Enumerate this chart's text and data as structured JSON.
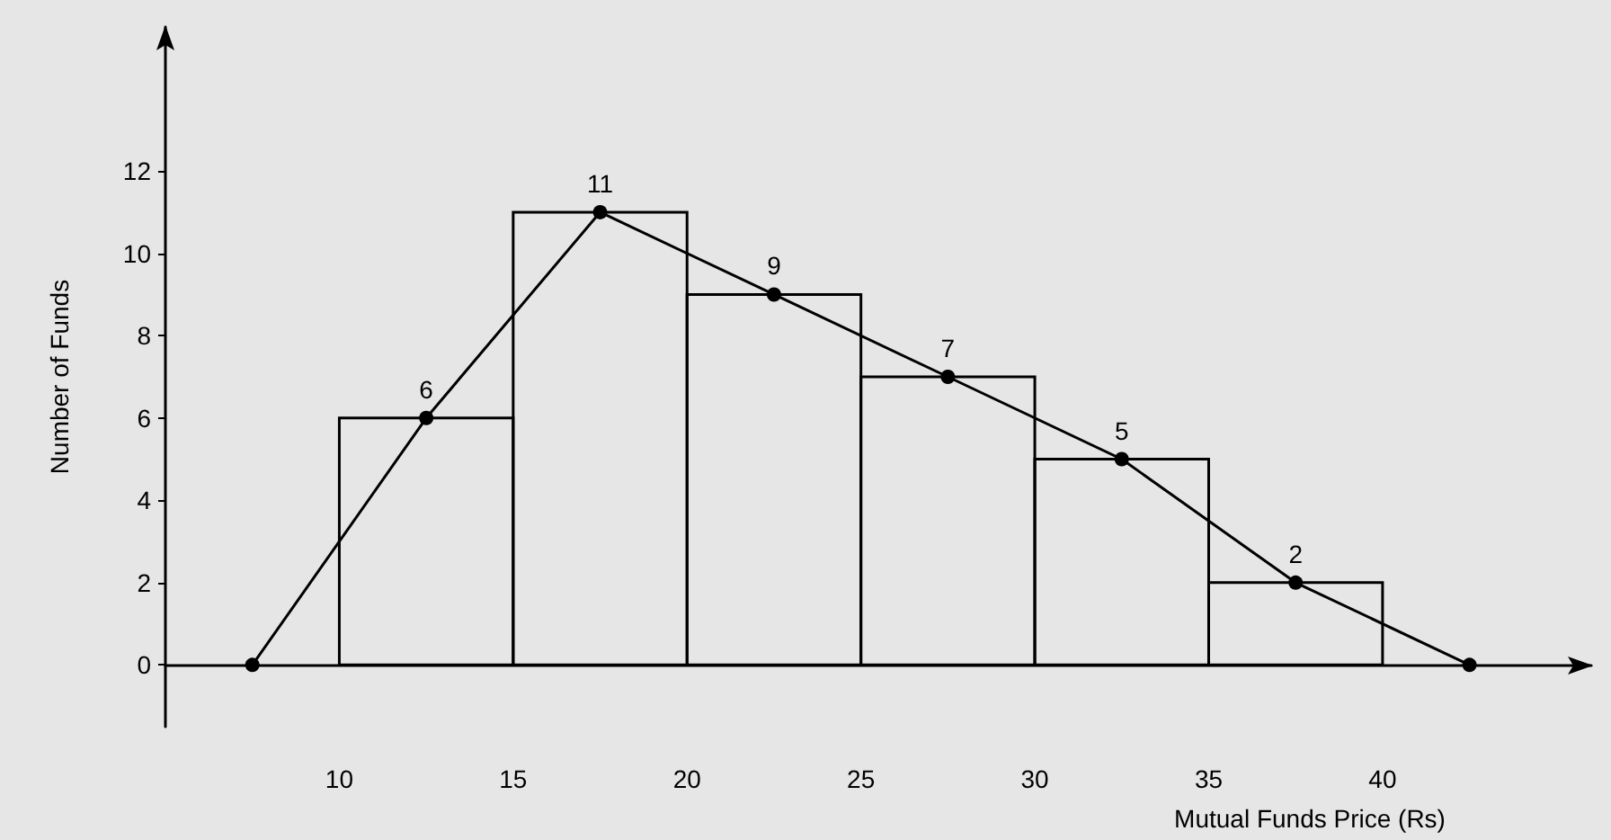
{
  "chart_data": {
    "type": "histogram",
    "xlabel": "Mutual Funds Price (Rs)",
    "ylabel": "Number of Funds",
    "series": [
      {
        "color": "#000000",
        "bins": [
          10,
          15,
          20,
          25,
          30,
          35,
          40
        ],
        "values": [
          6,
          11,
          9,
          7,
          5,
          2
        ]
      },
      {
        "type": "line",
        "color": "#000000",
        "x": [
          7.5,
          12.5,
          17.5,
          22.5,
          27.5,
          32.5,
          37.5,
          42.5
        ],
        "values": [
          0,
          6,
          11,
          9,
          7,
          5,
          2,
          0
        ],
        "value_labels": [
          null,
          "6",
          "11",
          "9",
          "7",
          "5",
          "2",
          null
        ],
        "marker": "circle"
      }
    ],
    "xlim": [
      5,
      46
    ],
    "xticks": [
      10,
      15,
      20,
      25,
      30,
      35,
      40
    ],
    "ylim": [
      -1.5,
      15.5
    ],
    "yticks": [
      0,
      2,
      4,
      6,
      8,
      10,
      12
    ]
  }
}
